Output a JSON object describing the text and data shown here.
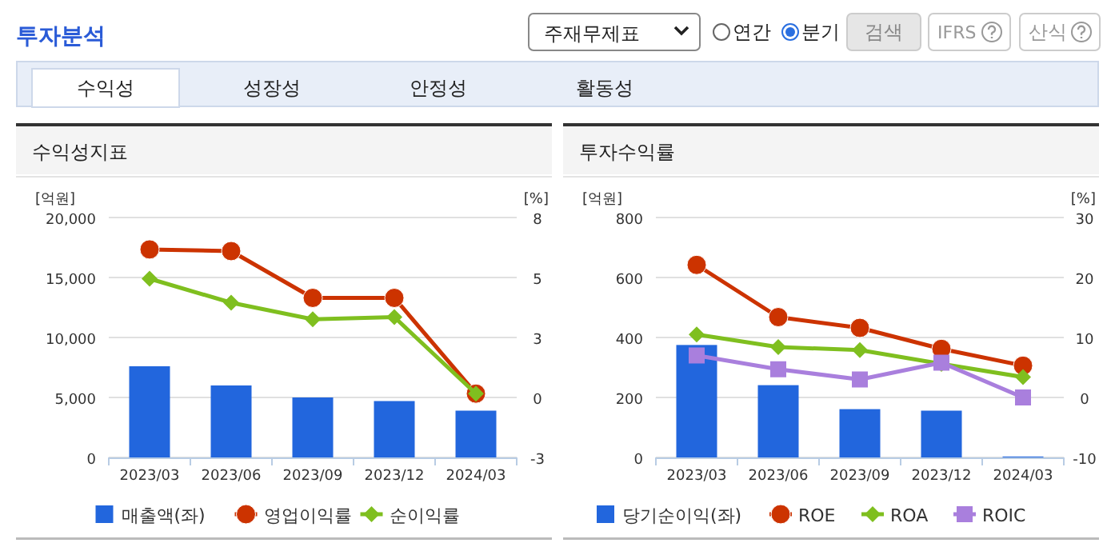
{
  "chart_data": [
    {
      "type": "other",
      "title": "투자분석",
      "annotations": [
        "주재무제표",
        "연간",
        "분기",
        "검색",
        "IFRS",
        "산식",
        "수익성",
        "성장성",
        "안정성",
        "활동성"
      ]
    },
    {
      "type": "bar",
      "title": "수익성지표",
      "ylabel": "[억원]",
      "y2label": "[%]",
      "categories": [
        "2023/03",
        "2023/06",
        "2023/09",
        "2023/12",
        "2024/03"
      ],
      "ylim": [
        0,
        20000
      ],
      "yticks": [
        0,
        {
          "value": 5000,
          "label": "5,000"
        },
        {
          "value": 10000,
          "label": "10,000"
        },
        {
          "value": 15000,
          "label": "15,000"
        },
        {
          "value": 20000,
          "label": "20,000"
        }
      ],
      "y2lim": [
        -2.5,
        7.5
      ],
      "y2ticks": [
        {
          "value": -2.5,
          "label": "-3"
        },
        0,
        {
          "value": 2.5,
          "label": "3"
        },
        5,
        {
          "value": 7.5,
          "label": "8"
        }
      ],
      "grid": "y",
      "legend": "bottom",
      "series": [
        {
          "name": "매출액(좌)",
          "type": "bar",
          "color": "#2266dd",
          "values": [
            7600,
            6000,
            5000,
            4700,
            3900
          ]
        },
        {
          "name": "영업이익률",
          "type": "line",
          "axis": "y2",
          "marker": "circle",
          "color": "#cc3300",
          "values": [
            6.17,
            6.1,
            4.15,
            4.15,
            0.16
          ]
        },
        {
          "name": "순이익률",
          "type": "line",
          "axis": "y2",
          "marker": "diamond",
          "color": "#7fbf1f",
          "values": [
            4.95,
            3.95,
            3.26,
            3.35,
            0.16
          ]
        }
      ]
    },
    {
      "type": "bar",
      "title": "투자수익률",
      "ylabel": "[억원]",
      "y2label": "[%]",
      "categories": [
        "2023/03",
        "2023/06",
        "2023/09",
        "2023/12",
        "2024/03"
      ],
      "ylim": [
        0,
        800
      ],
      "yticks": [
        0,
        200,
        400,
        600,
        800
      ],
      "y2lim": [
        -10,
        30
      ],
      "y2ticks": [
        -10,
        0,
        10,
        20,
        30
      ],
      "grid": "y",
      "legend": "bottom",
      "series": [
        {
          "name": "당기순이익(좌)",
          "type": "bar",
          "color": "#2266dd",
          "values": [
            375,
            241,
            161,
            156,
            3
          ]
        },
        {
          "name": "ROE",
          "type": "line",
          "axis": "y2",
          "marker": "circle",
          "color": "#cc3300",
          "values": [
            22.1,
            13.4,
            11.6,
            8.1,
            5.3
          ]
        },
        {
          "name": "ROA",
          "type": "line",
          "axis": "y2",
          "marker": "diamond",
          "color": "#7fbf1f",
          "values": [
            10.5,
            8.4,
            7.9,
            5.6,
            3.4
          ]
        },
        {
          "name": "ROIC",
          "type": "line",
          "axis": "y2",
          "marker": "square",
          "color": "#a97fdd",
          "values": [
            7.0,
            4.7,
            3.0,
            5.8,
            0.0
          ]
        }
      ]
    }
  ]
}
